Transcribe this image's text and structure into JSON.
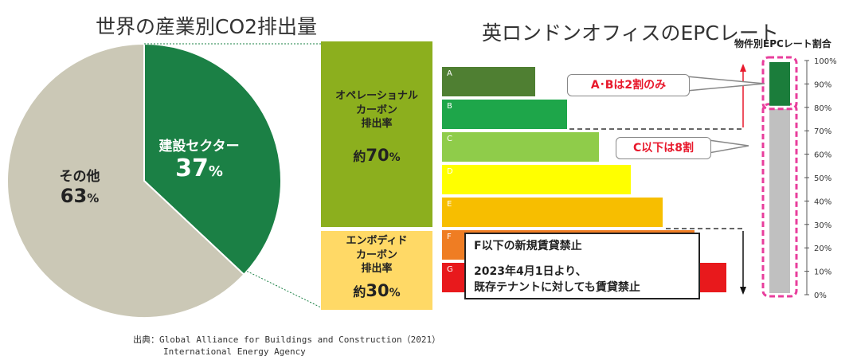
{
  "left": {
    "title": "世界の産業別CO2排出量",
    "pie": {
      "slices": [
        {
          "label": "建設セクター",
          "value": 37,
          "display": "37",
          "color": "#1b8045"
        },
        {
          "label": "その他",
          "value": 63,
          "display": "63",
          "color": "#cbc8b6"
        }
      ],
      "unit": "%"
    },
    "breakdown": [
      {
        "label_lines": [
          "オペレーショナル",
          "カーボン",
          "排出率"
        ],
        "prefix": "約",
        "value": "70",
        "unit": "%",
        "share": 70,
        "color": "#8caf1e"
      },
      {
        "label_lines": [
          "エンボディド",
          "カーボン",
          "排出率"
        ],
        "prefix": "約",
        "value": "30",
        "unit": "%",
        "share": 30,
        "color": "#ffd966"
      }
    ],
    "source": {
      "label": "出典：",
      "line1": "Global Alliance for Buildings and Construction（2021）",
      "line2": "International Energy Agency"
    }
  },
  "right": {
    "title": "英ロンドンオフィスのEPCレート",
    "epc_ratings": [
      {
        "letter": "A",
        "color": "#4f7f32"
      },
      {
        "letter": "B",
        "color": "#1ea64a"
      },
      {
        "letter": "C",
        "color": "#8fcc4a"
      },
      {
        "letter": "D",
        "color": "#ffff00"
      },
      {
        "letter": "E",
        "color": "#f7be00"
      },
      {
        "letter": "F",
        "color": "#ef7d23"
      },
      {
        "letter": "G",
        "color": "#e8191c"
      }
    ],
    "callouts": {
      "ab": "A･Bは2割のみ",
      "c_below": "C以下は8割",
      "ban_title": "F以下の新規賃貸禁止",
      "ban_line1": "2023年4月1日より、",
      "ban_line2": "既存テナントに対しても賃貸禁止"
    },
    "accent_color": "#e8192c",
    "highlight_color": "#e83e9c"
  },
  "chart_data": [
    {
      "type": "pie",
      "title": "世界の産業別CO2排出量",
      "categories": [
        "建設セクター",
        "その他"
      ],
      "values": [
        37,
        63
      ],
      "unit": "%"
    },
    {
      "type": "bar",
      "title": "物件別EPCレート割合",
      "categories": [
        "A･B",
        "C以下"
      ],
      "values": [
        20,
        80
      ],
      "ylim": [
        0,
        100
      ],
      "yticks": [
        "100%",
        "90%",
        "80%",
        "70%",
        "60%",
        "50%",
        "40%",
        "30%",
        "20%",
        "10%",
        "0%"
      ],
      "series_colors": [
        "#1b7d3b",
        "#c0c0c0"
      ]
    }
  ]
}
